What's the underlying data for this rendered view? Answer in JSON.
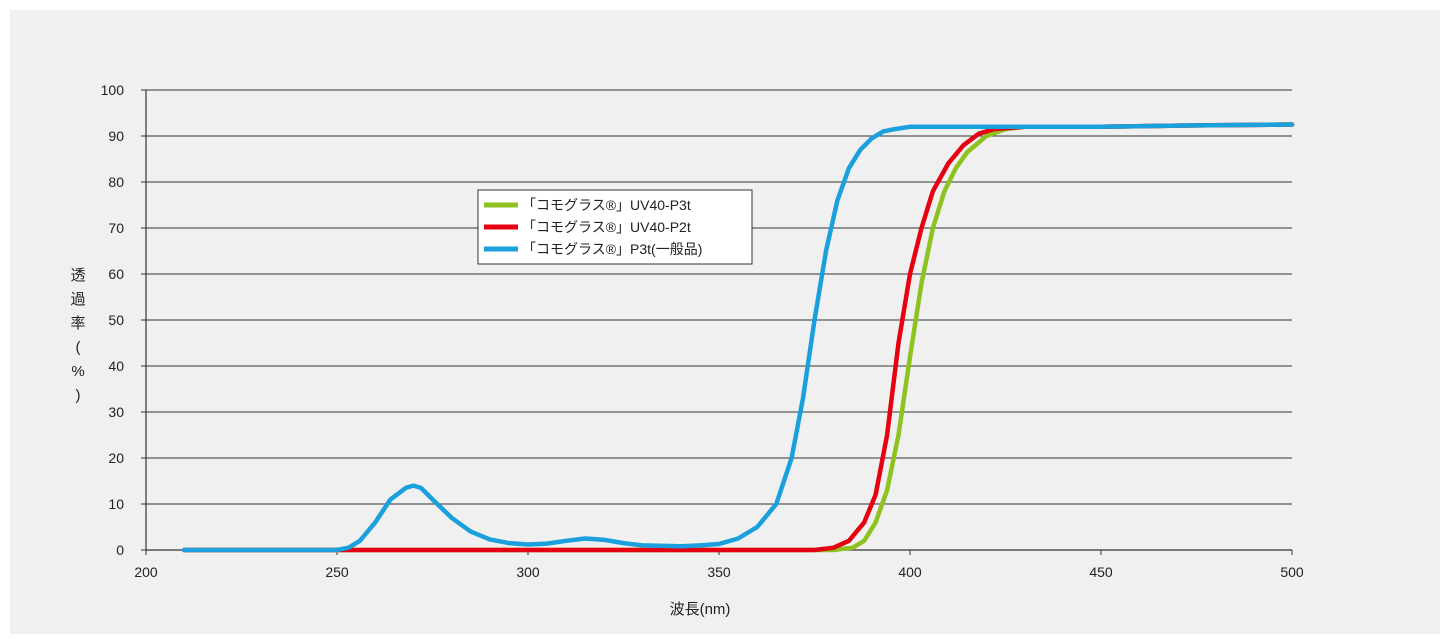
{
  "chart_data": {
    "type": "line",
    "title": "",
    "xlabel": "波長(nm)",
    "ylabel_chars": [
      "透",
      "過",
      "率",
      "(",
      "%",
      ")"
    ],
    "xlim": [
      200,
      500
    ],
    "ylim": [
      0,
      100
    ],
    "x_ticks": [
      200,
      250,
      300,
      350,
      400,
      450,
      500
    ],
    "y_ticks": [
      0,
      10,
      20,
      30,
      40,
      50,
      60,
      70,
      80,
      90,
      100
    ],
    "grid": "horizontal",
    "legend_position": "upper-left-center",
    "series": [
      {
        "name": "「コモグラス®」UV40-P3t",
        "color": "#8dc21f",
        "points": [
          [
            210,
            0
          ],
          [
            250,
            0
          ],
          [
            300,
            0
          ],
          [
            350,
            0
          ],
          [
            380,
            0
          ],
          [
            385,
            0.5
          ],
          [
            388,
            2
          ],
          [
            391,
            6
          ],
          [
            394,
            13
          ],
          [
            397,
            25
          ],
          [
            400,
            42
          ],
          [
            403,
            58
          ],
          [
            406,
            70
          ],
          [
            409,
            78
          ],
          [
            412,
            83
          ],
          [
            415,
            86.5
          ],
          [
            420,
            90
          ],
          [
            425,
            91.5
          ],
          [
            430,
            92
          ],
          [
            450,
            92
          ],
          [
            475,
            92.3
          ],
          [
            500,
            92.5
          ]
        ]
      },
      {
        "name": "「コモグラス®」UV40-P2t",
        "color": "#e60012",
        "points": [
          [
            210,
            0
          ],
          [
            250,
            0
          ],
          [
            300,
            0
          ],
          [
            350,
            0
          ],
          [
            375,
            0
          ],
          [
            380,
            0.5
          ],
          [
            384,
            2
          ],
          [
            388,
            6
          ],
          [
            391,
            12
          ],
          [
            394,
            25
          ],
          [
            397,
            45
          ],
          [
            400,
            60
          ],
          [
            403,
            70
          ],
          [
            406,
            78
          ],
          [
            410,
            84
          ],
          [
            414,
            88
          ],
          [
            418,
            90.5
          ],
          [
            422,
            91.5
          ],
          [
            430,
            92
          ],
          [
            450,
            92
          ],
          [
            475,
            92.3
          ],
          [
            500,
            92.5
          ]
        ]
      },
      {
        "name": "「コモグラス®」P3t(一般品)",
        "color": "#1aa0dc",
        "points": [
          [
            210,
            0
          ],
          [
            250,
            0
          ],
          [
            253,
            0.5
          ],
          [
            256,
            2
          ],
          [
            260,
            6
          ],
          [
            264,
            11
          ],
          [
            268,
            13.5
          ],
          [
            270,
            14
          ],
          [
            272,
            13.5
          ],
          [
            275,
            11
          ],
          [
            280,
            7
          ],
          [
            285,
            4
          ],
          [
            290,
            2.3
          ],
          [
            295,
            1.5
          ],
          [
            300,
            1.2
          ],
          [
            305,
            1.4
          ],
          [
            310,
            2
          ],
          [
            315,
            2.5
          ],
          [
            320,
            2.2
          ],
          [
            325,
            1.5
          ],
          [
            330,
            1
          ],
          [
            340,
            0.8
          ],
          [
            345,
            1
          ],
          [
            350,
            1.3
          ],
          [
            355,
            2.5
          ],
          [
            360,
            5
          ],
          [
            365,
            10
          ],
          [
            369,
            20
          ],
          [
            372,
            33
          ],
          [
            375,
            50
          ],
          [
            378,
            65
          ],
          [
            381,
            76
          ],
          [
            384,
            83
          ],
          [
            387,
            87
          ],
          [
            390,
            89.5
          ],
          [
            393,
            91
          ],
          [
            396,
            91.5
          ],
          [
            400,
            92
          ],
          [
            405,
            92
          ],
          [
            420,
            92
          ],
          [
            450,
            92
          ],
          [
            475,
            92.3
          ],
          [
            500,
            92.5
          ]
        ]
      }
    ]
  }
}
